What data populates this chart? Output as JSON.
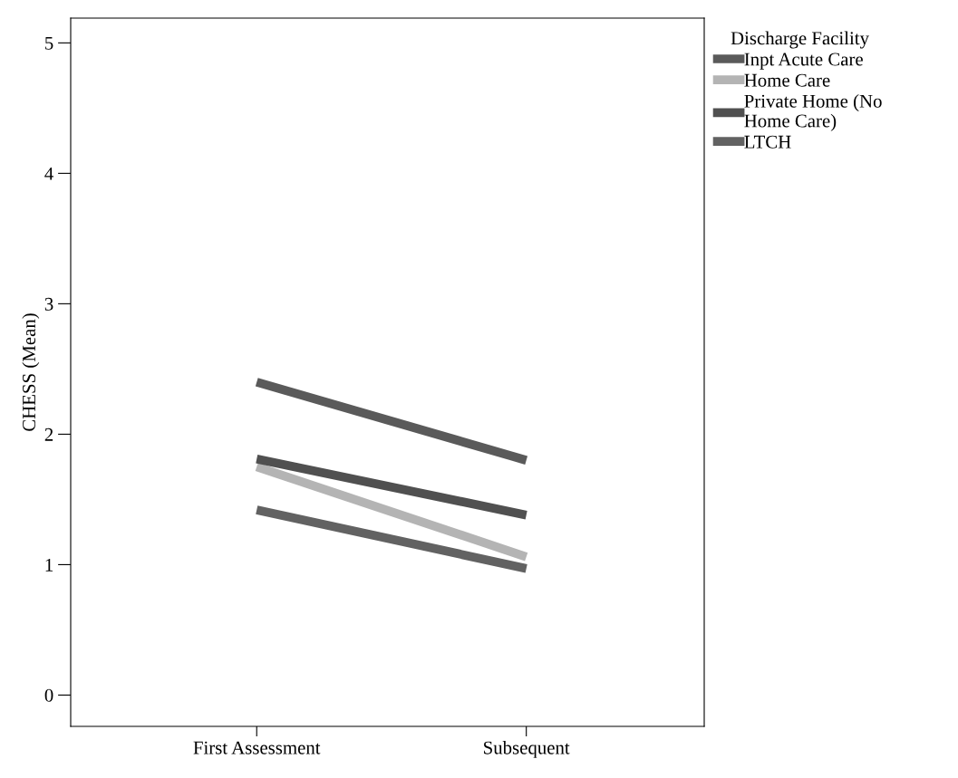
{
  "chart_data": {
    "type": "line",
    "ylabel": "CHESS (Mean)",
    "legend_title": "Discharge Facility",
    "categories": [
      "First Assessment",
      "Subsequent"
    ],
    "series": [
      {
        "name": "Inpt Acute Care",
        "color": "#5a5a5a",
        "values": [
          2.4,
          1.8
        ]
      },
      {
        "name": "Home Care",
        "color": "#b4b4b4",
        "values": [
          1.75,
          1.06
        ]
      },
      {
        "name": "Private Home (No\nHome Care)",
        "color": "#505050",
        "values": [
          1.81,
          1.38
        ]
      },
      {
        "name": "LTCH",
        "color": "#626262",
        "values": [
          1.42,
          0.97
        ]
      }
    ],
    "ylim": [
      -0.24,
      5.19
    ],
    "yticks": [
      0,
      1,
      2,
      3,
      4,
      5
    ],
    "grid": false,
    "legend": "right",
    "marker": "none",
    "line_style": "solid"
  }
}
